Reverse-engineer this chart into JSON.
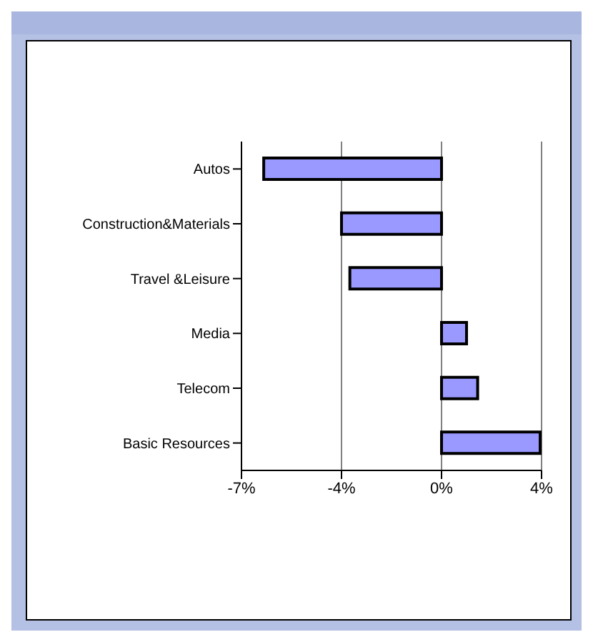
{
  "chart_data": {
    "type": "bar",
    "orientation": "horizontal",
    "categories": [
      "Autos",
      "Construction&Materials",
      "Travel &Leisure",
      "Media",
      "Telecom",
      "Basic Resources"
    ],
    "values": [
      -6.4,
      -3.6,
      -3.3,
      0.9,
      1.3,
      3.55
    ],
    "color": "#9999ff",
    "xlim": [
      -7.2,
      3.6
    ],
    "xticks": [
      {
        "value": -7.2,
        "label": "-7%"
      },
      {
        "value": -3.6,
        "label": "-4%"
      },
      {
        "value": 0,
        "label": "0%"
      },
      {
        "value": 3.6,
        "label": "4%"
      }
    ],
    "grid": "x"
  }
}
